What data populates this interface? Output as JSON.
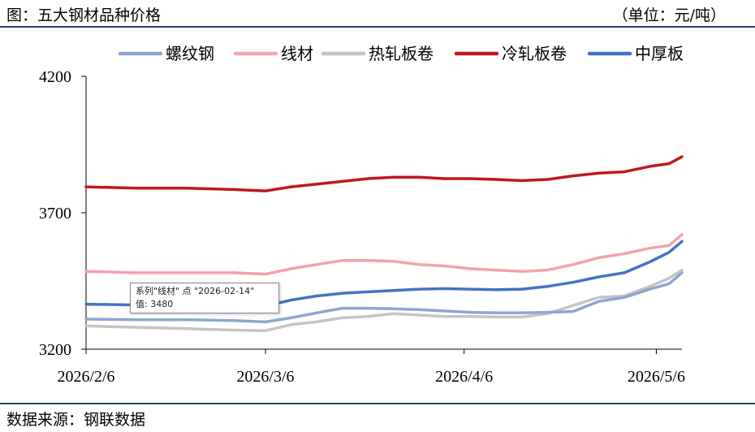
{
  "header": {
    "title": "图：五大钢材品种价格",
    "unit": "（单位：元/吨）"
  },
  "footer": {
    "source": "数据来源：钢联数据"
  },
  "tooltip": {
    "line1": "系列\"线材\" 点 \"2026-02-14\"",
    "line2": "值: 3480"
  },
  "chart_data": {
    "type": "line",
    "title": "五大钢材品种价格",
    "ylabel": "",
    "xlabel": "",
    "ylim": [
      3200,
      4200
    ],
    "yticks": [
      3200,
      3700,
      4200
    ],
    "xlim": [
      "2026-02-06",
      "2026-05-10"
    ],
    "xticks": [
      {
        "date": "2026-02-06",
        "label": "2026/2/6"
      },
      {
        "date": "2026-03-06",
        "label": "2026/3/6"
      },
      {
        "date": "2026-04-06",
        "label": "2026/4/6"
      },
      {
        "date": "2026-05-06",
        "label": "2026/5/6"
      }
    ],
    "legend_position": "top",
    "grid": false,
    "series": [
      {
        "name": "螺纹钢",
        "color": "#8ea6cf",
        "points": [
          [
            "2026-02-06",
            3310
          ],
          [
            "2026-02-14",
            3308
          ],
          [
            "2026-02-22",
            3308
          ],
          [
            "2026-03-01",
            3305
          ],
          [
            "2026-03-06",
            3300
          ],
          [
            "2026-03-10",
            3315
          ],
          [
            "2026-03-14",
            3333
          ],
          [
            "2026-03-18",
            3350
          ],
          [
            "2026-03-22",
            3350
          ],
          [
            "2026-03-26",
            3348
          ],
          [
            "2026-03-30",
            3345
          ],
          [
            "2026-04-03",
            3340
          ],
          [
            "2026-04-07",
            3335
          ],
          [
            "2026-04-11",
            3333
          ],
          [
            "2026-04-15",
            3333
          ],
          [
            "2026-04-19",
            3335
          ],
          [
            "2026-04-23",
            3338
          ],
          [
            "2026-04-27",
            3375
          ],
          [
            "2026-05-01",
            3390
          ],
          [
            "2026-05-05",
            3420
          ],
          [
            "2026-05-08",
            3440
          ],
          [
            "2026-05-10",
            3480
          ]
        ]
      },
      {
        "name": "线材",
        "color": "#f2a3ac",
        "points": [
          [
            "2026-02-06",
            3485
          ],
          [
            "2026-02-14",
            3480
          ],
          [
            "2026-02-22",
            3480
          ],
          [
            "2026-03-01",
            3480
          ],
          [
            "2026-03-06",
            3475
          ],
          [
            "2026-03-10",
            3495
          ],
          [
            "2026-03-14",
            3510
          ],
          [
            "2026-03-18",
            3525
          ],
          [
            "2026-03-22",
            3525
          ],
          [
            "2026-03-26",
            3522
          ],
          [
            "2026-03-30",
            3510
          ],
          [
            "2026-04-03",
            3505
          ],
          [
            "2026-04-07",
            3495
          ],
          [
            "2026-04-11",
            3490
          ],
          [
            "2026-04-15",
            3485
          ],
          [
            "2026-04-19",
            3490
          ],
          [
            "2026-04-23",
            3510
          ],
          [
            "2026-04-27",
            3535
          ],
          [
            "2026-05-01",
            3550
          ],
          [
            "2026-05-05",
            3570
          ],
          [
            "2026-05-08",
            3580
          ],
          [
            "2026-05-10",
            3620
          ]
        ]
      },
      {
        "name": "热轧板卷",
        "color": "#c4c4c4",
        "points": [
          [
            "2026-02-06",
            3285
          ],
          [
            "2026-02-14",
            3280
          ],
          [
            "2026-02-22",
            3275
          ],
          [
            "2026-03-01",
            3270
          ],
          [
            "2026-03-06",
            3268
          ],
          [
            "2026-03-10",
            3290
          ],
          [
            "2026-03-14",
            3300
          ],
          [
            "2026-03-18",
            3315
          ],
          [
            "2026-03-22",
            3320
          ],
          [
            "2026-03-26",
            3330
          ],
          [
            "2026-03-30",
            3325
          ],
          [
            "2026-04-03",
            3320
          ],
          [
            "2026-04-07",
            3320
          ],
          [
            "2026-04-11",
            3318
          ],
          [
            "2026-04-15",
            3318
          ],
          [
            "2026-04-19",
            3330
          ],
          [
            "2026-04-23",
            3360
          ],
          [
            "2026-04-27",
            3390
          ],
          [
            "2026-05-01",
            3395
          ],
          [
            "2026-05-05",
            3430
          ],
          [
            "2026-05-08",
            3460
          ],
          [
            "2026-05-10",
            3490
          ]
        ]
      },
      {
        "name": "冷轧板卷",
        "color": "#c0181f",
        "points": [
          [
            "2026-02-06",
            3795
          ],
          [
            "2026-02-14",
            3790
          ],
          [
            "2026-02-22",
            3790
          ],
          [
            "2026-03-01",
            3785
          ],
          [
            "2026-03-06",
            3780
          ],
          [
            "2026-03-10",
            3795
          ],
          [
            "2026-03-14",
            3805
          ],
          [
            "2026-03-18",
            3815
          ],
          [
            "2026-03-22",
            3825
          ],
          [
            "2026-03-26",
            3830
          ],
          [
            "2026-03-30",
            3830
          ],
          [
            "2026-04-03",
            3825
          ],
          [
            "2026-04-07",
            3825
          ],
          [
            "2026-04-11",
            3822
          ],
          [
            "2026-04-15",
            3818
          ],
          [
            "2026-04-19",
            3822
          ],
          [
            "2026-04-23",
            3835
          ],
          [
            "2026-04-27",
            3845
          ],
          [
            "2026-05-01",
            3850
          ],
          [
            "2026-05-05",
            3870
          ],
          [
            "2026-05-08",
            3880
          ],
          [
            "2026-05-10",
            3905
          ]
        ]
      },
      {
        "name": "中厚板",
        "color": "#4472c4",
        "points": [
          [
            "2026-02-06",
            3365
          ],
          [
            "2026-02-14",
            3362
          ],
          [
            "2026-02-22",
            3360
          ],
          [
            "2026-03-01",
            3360
          ],
          [
            "2026-03-06",
            3358
          ],
          [
            "2026-03-10",
            3380
          ],
          [
            "2026-03-14",
            3395
          ],
          [
            "2026-03-18",
            3405
          ],
          [
            "2026-03-22",
            3410
          ],
          [
            "2026-03-26",
            3415
          ],
          [
            "2026-03-30",
            3420
          ],
          [
            "2026-04-03",
            3422
          ],
          [
            "2026-04-07",
            3420
          ],
          [
            "2026-04-11",
            3418
          ],
          [
            "2026-04-15",
            3420
          ],
          [
            "2026-04-19",
            3430
          ],
          [
            "2026-04-23",
            3445
          ],
          [
            "2026-04-27",
            3465
          ],
          [
            "2026-05-01",
            3480
          ],
          [
            "2026-05-05",
            3520
          ],
          [
            "2026-05-08",
            3555
          ],
          [
            "2026-05-10",
            3595
          ]
        ]
      }
    ]
  }
}
